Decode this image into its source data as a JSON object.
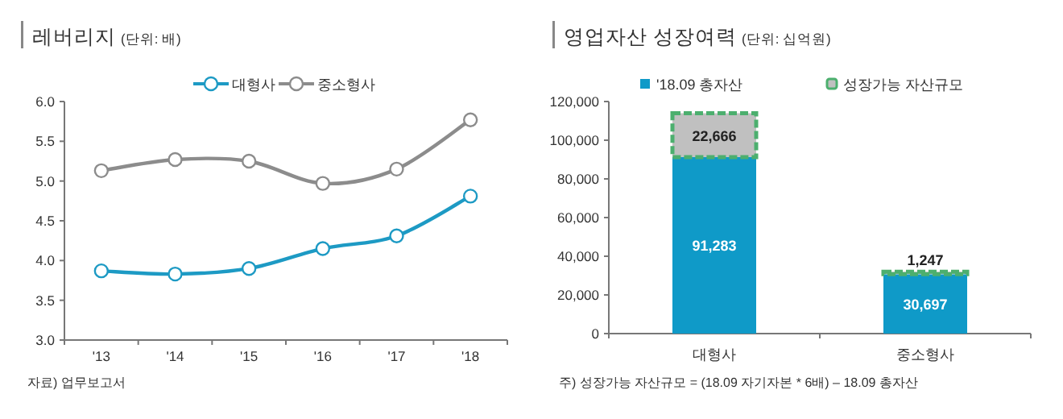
{
  "chart_data": [
    {
      "type": "line",
      "title": "레버리지",
      "subtitle": "(단위: 배)",
      "categories": [
        "'13",
        "'14",
        "'15",
        "'16",
        "'17",
        "'18"
      ],
      "series": [
        {
          "name": "대형사",
          "color": "#1d9ac4",
          "values": [
            3.87,
            3.83,
            3.9,
            4.15,
            4.31,
            4.81
          ]
        },
        {
          "name": "중소형사",
          "color": "#8c8c8c",
          "values": [
            5.13,
            5.27,
            5.25,
            4.97,
            5.15,
            5.77
          ]
        }
      ],
      "ylim": [
        3,
        6
      ],
      "yticks": [
        {
          "value": 3,
          "label": "3.0"
        },
        {
          "value": 3.5,
          "label": "3.5"
        },
        {
          "value": 4,
          "label": "4.0"
        },
        {
          "value": 4.5,
          "label": "4.5"
        },
        {
          "value": 5,
          "label": "5.0"
        },
        {
          "value": 5.5,
          "label": "5.5"
        },
        {
          "value": 6,
          "label": "6.0"
        }
      ],
      "legend": "top",
      "marker": "circle",
      "annotations": [
        "자료) 업무보고서"
      ]
    },
    {
      "type": "bar",
      "title": "영업자산 성장여력",
      "subtitle": "(단위: 십억원)",
      "categories": [
        "대형사",
        "중소형사"
      ],
      "stacked": true,
      "series": [
        {
          "name": "'18.09 총자산",
          "color": "#0f9ac8",
          "values": [
            91283,
            30697
          ],
          "value_labels": [
            "91,283",
            "30,697"
          ]
        },
        {
          "name": "성장가능 자산규모",
          "color": "#c0c0c0",
          "values": [
            22666,
            1247
          ],
          "value_labels": [
            "22,666",
            "1,247"
          ]
        }
      ],
      "ylim": [
        0,
        120000
      ],
      "yticks": [
        {
          "value": 0,
          "label": "0"
        },
        {
          "value": 20000,
          "label": "20,000"
        },
        {
          "value": 40000,
          "label": "40,000"
        },
        {
          "value": 60000,
          "label": "60,000"
        },
        {
          "value": 80000,
          "label": "80,000"
        },
        {
          "value": 100000,
          "label": "100,000"
        },
        {
          "value": 120000,
          "label": "120,000"
        }
      ],
      "legend": "top",
      "annotations": [
        "주) 성장가능 자산규모 = (18.09 자기자본 * 6배) – 18.09 총자산"
      ]
    }
  ]
}
